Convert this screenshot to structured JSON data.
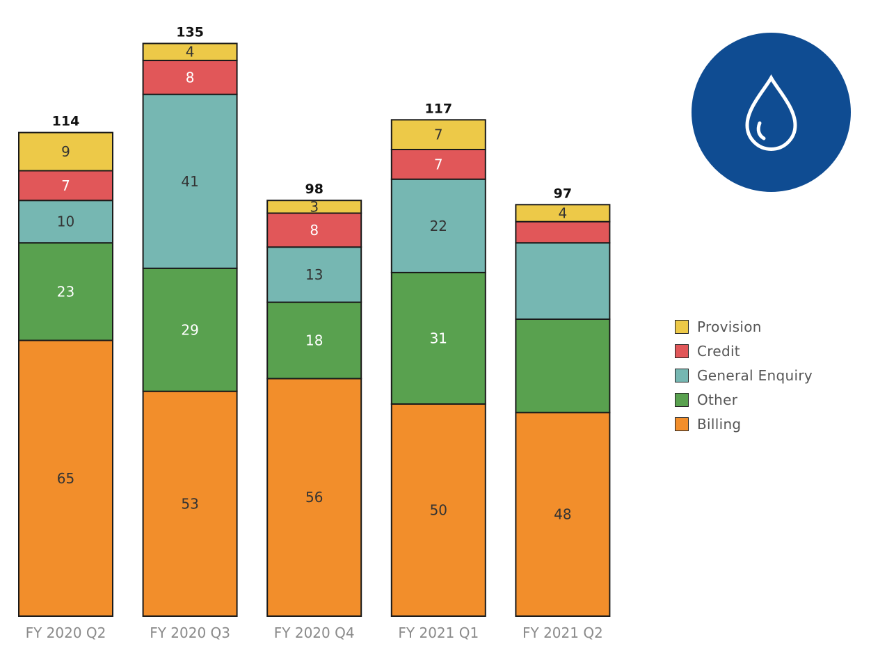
{
  "chart_data": {
    "type": "bar",
    "stacked": true,
    "categories": [
      "FY 2020 Q2",
      "FY 2020 Q3",
      "FY 2020 Q4",
      "FY 2021 Q1",
      "FY 2021 Q2"
    ],
    "totals": [
      114,
      135,
      98,
      117,
      97
    ],
    "series": [
      {
        "name": "Billing",
        "color": "#f28e2b",
        "label_color": "#333333",
        "values": [
          65,
          53,
          56,
          50,
          48
        ]
      },
      {
        "name": "Other",
        "color": "#59a14f",
        "label_color": "#ffffff",
        "values": [
          23,
          29,
          18,
          31,
          22
        ]
      },
      {
        "name": "General Enquiry",
        "color": "#76b7b2",
        "label_color": "#333333",
        "values": [
          10,
          41,
          13,
          22,
          18
        ]
      },
      {
        "name": "Credit",
        "color": "#e15759",
        "label_color": "#ffffff",
        "values": [
          7,
          8,
          8,
          7,
          5
        ]
      },
      {
        "name": "Provision",
        "color": "#edc948",
        "label_color": "#333333",
        "values": [
          9,
          4,
          3,
          7,
          4
        ]
      }
    ],
    "shown_labels": [
      [
        true,
        true,
        true,
        true,
        true
      ],
      [
        true,
        true,
        true,
        true,
        false
      ],
      [
        true,
        true,
        true,
        true,
        false
      ],
      [
        true,
        true,
        true,
        true,
        false
      ],
      [
        true,
        true,
        true,
        true,
        true
      ]
    ],
    "legend_order": [
      "Provision",
      "Credit",
      "General Enquiry",
      "Other",
      "Billing"
    ],
    "legend_position": "right",
    "grid": false
  },
  "logo": {
    "icon": "water-drop-icon",
    "background": "#0f4c92",
    "foreground": "#ffffff"
  }
}
